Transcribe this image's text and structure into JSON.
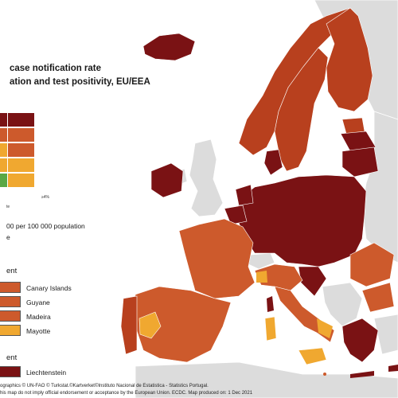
{
  "title": {
    "line1": "case notification rate",
    "line2": "ation and test positivity, EU/EEA"
  },
  "colors": {
    "dark_red": "#7a1214",
    "red_brown": "#b8401e",
    "orange": "#cd5a2c",
    "yellow": "#f0a830",
    "green": "#5aa845",
    "non_eu": "#dcdcdc",
    "sea": "#ffffff"
  },
  "legend": {
    "grid_colors": [
      [
        "#7a1214",
        "#7a1214"
      ],
      [
        "#cd5a2c",
        "#cd5a2c"
      ],
      [
        "#f0a830",
        "#cd5a2c"
      ],
      [
        "#f0a830",
        "#f0a830"
      ],
      [
        "#5aa845",
        "#f0a830"
      ]
    ],
    "axis_label": "≥4%",
    "x_caption": "te",
    "rate_caption": "00 per 100 000 population",
    "rate_caption2": "e"
  },
  "outermost_section": {
    "heading": "ent",
    "items": [
      {
        "label": "Canary Islands",
        "color": "#cd5a2c"
      },
      {
        "label": "Guyane",
        "color": "#cd5a2c"
      },
      {
        "label": "Madeira",
        "color": "#cd5a2c"
      },
      {
        "label": "Mayotte",
        "color": "#f0a830"
      }
    ]
  },
  "small_countries_section": {
    "heading": "ent",
    "items": [
      {
        "label": "Liechtenstein",
        "color": "#7a1214"
      }
    ]
  },
  "footer": {
    "line1": "ographics © UN-FAO © Turkstat.©Kartverket©Instituto Nacional de Estatistica - Statistics Portugal.",
    "line2": "his map do not imply official endorsement or acceptance by the European Union. ECDC. Map produced on: 1 Dec 2021"
  }
}
